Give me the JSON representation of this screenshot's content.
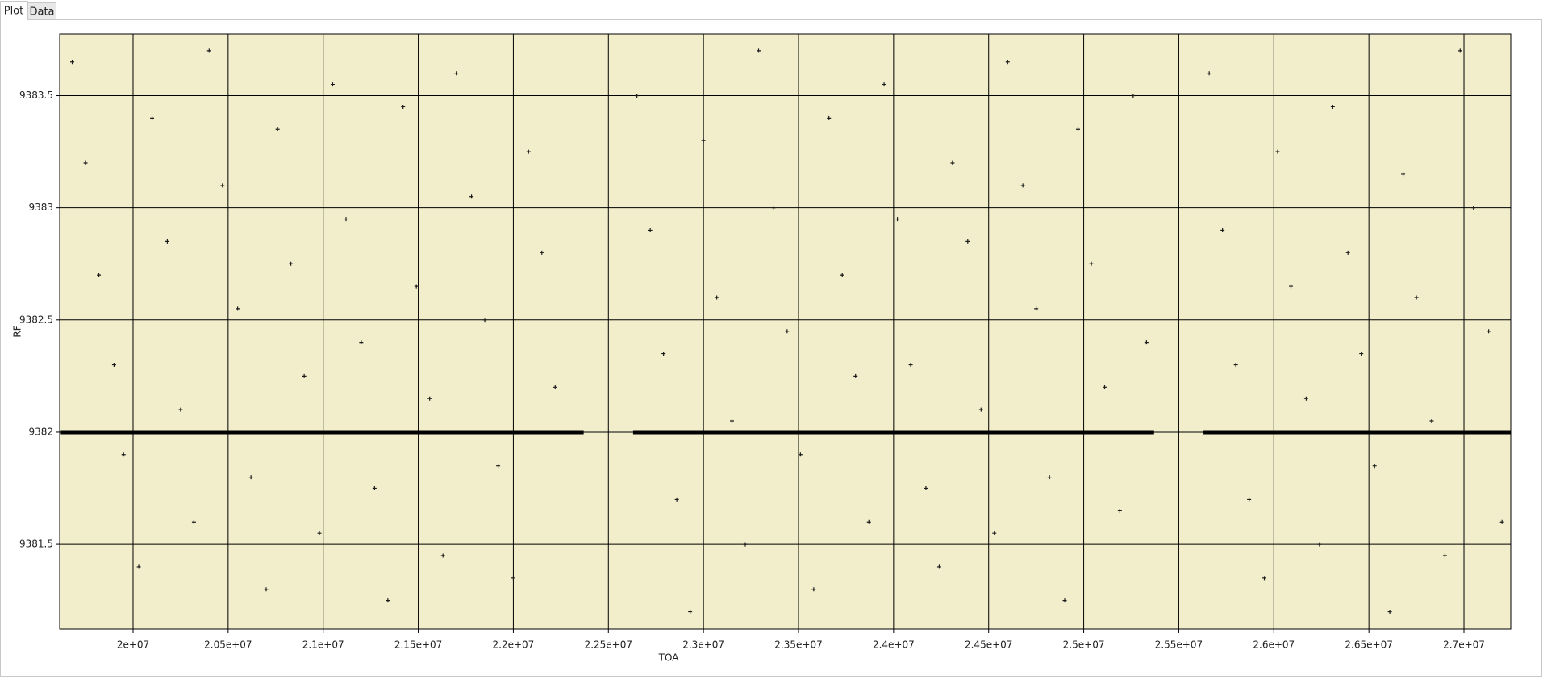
{
  "tabs": [
    "Plot",
    "Data"
  ],
  "chart_data": {
    "type": "scatter",
    "x_label": "TOA",
    "y_label": "RF",
    "background": "#f2eecb",
    "grid": true,
    "xlim": [
      19614000,
      27246000
    ],
    "ylim": [
      9381.123,
      9383.775
    ],
    "xticks": [
      {
        "value": 20000000,
        "label": "2e+07"
      },
      {
        "value": 20500000,
        "label": "2.05e+07"
      },
      {
        "value": 21000000,
        "label": "2.1e+07"
      },
      {
        "value": 21500000,
        "label": "2.15e+07"
      },
      {
        "value": 22000000,
        "label": "2.2e+07"
      },
      {
        "value": 22500000,
        "label": "2.25e+07"
      },
      {
        "value": 23000000,
        "label": "2.3e+07"
      },
      {
        "value": 23500000,
        "label": "2.35e+07"
      },
      {
        "value": 24000000,
        "label": "2.4e+07"
      },
      {
        "value": 24500000,
        "label": "2.45e+07"
      },
      {
        "value": 25000000,
        "label": "2.5e+07"
      },
      {
        "value": 25500000,
        "label": "2.55e+07"
      },
      {
        "value": 26000000,
        "label": "2.6e+07"
      },
      {
        "value": 26500000,
        "label": "2.65e+07"
      },
      {
        "value": 27000000,
        "label": "2.7e+07"
      }
    ],
    "yticks": [
      9381.5,
      9382,
      9382.5,
      9383,
      9383.5
    ],
    "series": [
      {
        "color": "#1a1a1a",
        "marker": "+",
        "x": [
          19680000,
          19750000,
          19820000,
          19900000,
          19950000,
          20030000,
          20100000,
          20180000,
          20250000,
          20320000,
          20400000,
          20470000,
          20550000,
          20620000,
          20700000,
          20760000,
          20830000,
          20900000,
          20980000,
          21050000,
          21120000,
          21200000,
          21270000,
          21340000,
          21420000,
          21490000,
          21560000,
          21630000,
          21700000,
          21780000,
          21850000,
          21920000,
          22000000,
          22080000,
          22150000,
          22220000,
          22650000,
          22720000,
          22790000,
          22860000,
          22930000,
          23000000,
          23070000,
          23150000,
          23220000,
          23290000,
          23370000,
          23440000,
          23510000,
          23580000,
          23660000,
          23730000,
          23800000,
          23870000,
          23950000,
          24020000,
          24090000,
          24170000,
          24240000,
          24310000,
          24390000,
          24460000,
          24530000,
          24600000,
          24680000,
          24750000,
          24820000,
          24900000,
          24970000,
          25040000,
          25110000,
          25190000,
          25260000,
          25330000,
          25660000,
          25730000,
          25800000,
          25870000,
          25950000,
          26020000,
          26090000,
          26170000,
          26240000,
          26310000,
          26390000,
          26460000,
          26530000,
          26610000,
          26680000,
          26750000,
          26830000,
          26900000,
          26980000,
          27050000,
          27130000,
          27200000
        ],
        "values": [
          9383.65,
          9383.2,
          9382.7,
          9382.3,
          9381.9,
          9381.4,
          9383.4,
          9382.85,
          9382.1,
          9381.6,
          9383.7,
          9383.1,
          9382.55,
          9381.8,
          9381.3,
          9383.35,
          9382.75,
          9382.25,
          9381.55,
          9383.55,
          9382.95,
          9382.4,
          9381.75,
          9381.25,
          9383.45,
          9382.65,
          9382.15,
          9381.45,
          9383.6,
          9383.05,
          9382.5,
          9381.85,
          9381.35,
          9383.25,
          9382.8,
          9382.2,
          9383.5,
          9382.9,
          9382.35,
          9381.7,
          9381.2,
          9383.3,
          9382.6,
          9382.05,
          9381.5,
          9383.7,
          9383.0,
          9382.45,
          9381.9,
          9381.3,
          9383.4,
          9382.7,
          9382.25,
          9381.6,
          9383.55,
          9382.95,
          9382.3,
          9381.75,
          9381.4,
          9383.2,
          9382.85,
          9382.1,
          9381.55,
          9383.65,
          9383.1,
          9382.55,
          9381.8,
          9381.25,
          9383.35,
          9382.75,
          9382.2,
          9381.65,
          9383.5,
          9382.4,
          9383.6,
          9382.9,
          9382.3,
          9381.7,
          9381.35,
          9383.25,
          9382.65,
          9382.15,
          9381.5,
          9383.45,
          9382.8,
          9382.35,
          9381.85,
          9381.2,
          9383.15,
          9382.6,
          9382.05,
          9381.45,
          9383.7,
          9383.0,
          9382.45,
          9381.6
        ]
      },
      {
        "color": "#000000",
        "mode": "line",
        "x": [
          19620000,
          22370000,
          null,
          22630000,
          25370000,
          null,
          25630000,
          27246000
        ],
        "values": [
          9382,
          9382,
          null,
          9382,
          9382,
          null,
          9382,
          9382
        ]
      }
    ]
  }
}
